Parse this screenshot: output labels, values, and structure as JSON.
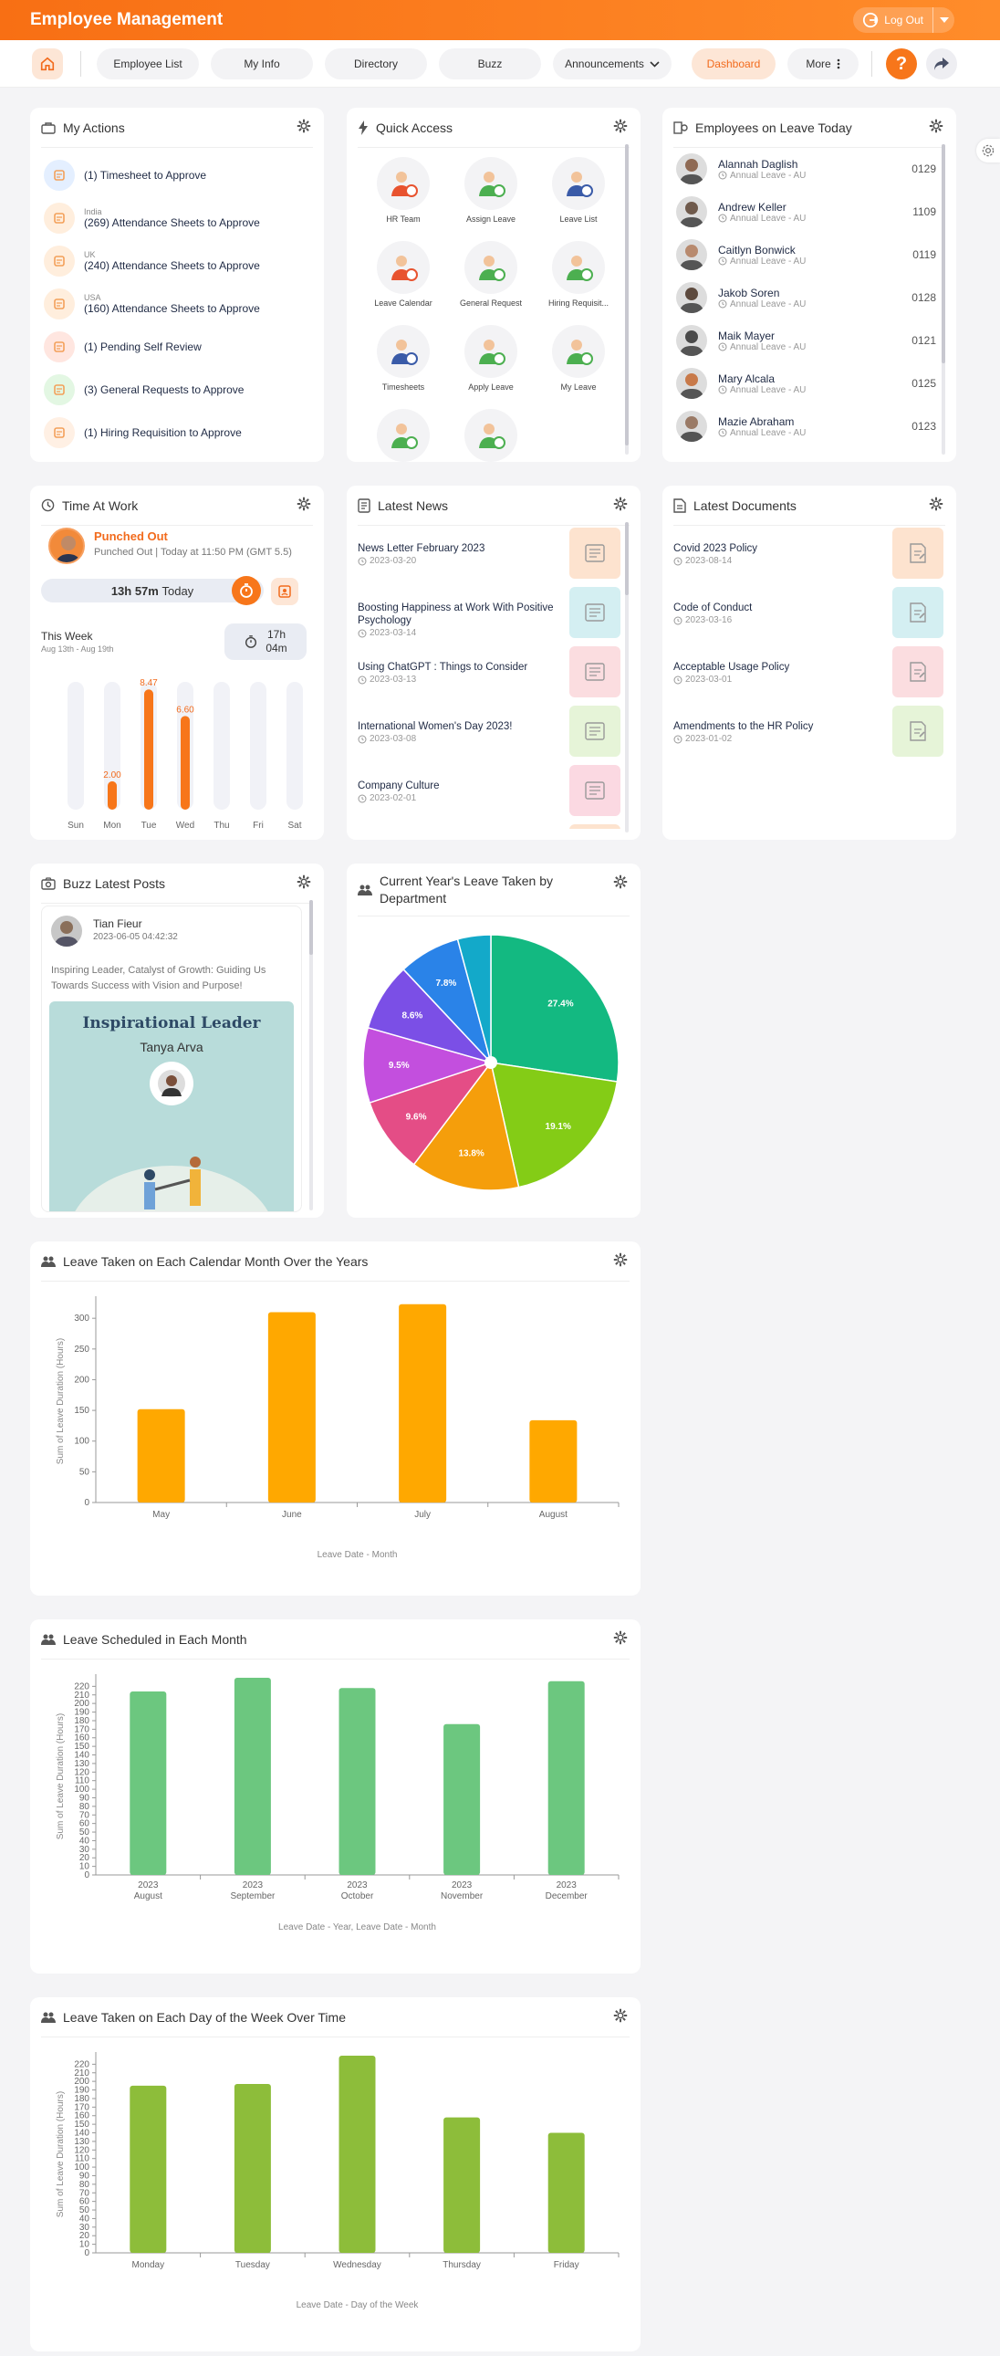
{
  "app": {
    "title": "Employee Management",
    "logout_label": "Log Out"
  },
  "nav": {
    "items": [
      {
        "label": "Employee List"
      },
      {
        "label": "My Info"
      },
      {
        "label": "Directory"
      },
      {
        "label": "Buzz"
      },
      {
        "label": "Announcements"
      },
      {
        "label": "Dashboard"
      },
      {
        "label": "More"
      }
    ],
    "help_label": "?"
  },
  "my_actions": {
    "title": "My Actions",
    "items": [
      {
        "sub": "",
        "text": "(1) Timesheet to Approve",
        "color": "#e4efff",
        "icon": "timesheet-icon"
      },
      {
        "sub": "India",
        "text": "(269) Attendance Sheets to Approve",
        "color": "#ffeedd",
        "icon": "attendance-icon"
      },
      {
        "sub": "UK",
        "text": "(240) Attendance Sheets to Approve",
        "color": "#ffeedd",
        "icon": "attendance-icon"
      },
      {
        "sub": "USA",
        "text": "(160) Attendance Sheets to Approve",
        "color": "#ffeedd",
        "icon": "attendance-icon"
      },
      {
        "sub": "",
        "text": "(1) Pending Self Review",
        "color": "#ffe6e0",
        "icon": "self-review-icon"
      },
      {
        "sub": "",
        "text": "(3) General Requests to Approve",
        "color": "#e3f7e3",
        "icon": "general-request-icon"
      },
      {
        "sub": "",
        "text": "(1) Hiring Requisition to Approve",
        "color": "#fff0e4",
        "icon": "hiring-icon"
      }
    ]
  },
  "quick_access": {
    "title": "Quick Access",
    "items": [
      {
        "label": "HR Team"
      },
      {
        "label": "Assign Leave"
      },
      {
        "label": "Leave List"
      },
      {
        "label": "Leave Calendar"
      },
      {
        "label": "General Request"
      },
      {
        "label": "Hiring Requisit..."
      },
      {
        "label": "Timesheets"
      },
      {
        "label": "Apply Leave"
      },
      {
        "label": "My Leave"
      },
      {
        "label": ""
      },
      {
        "label": ""
      }
    ]
  },
  "employees_on_leave": {
    "title": "Employees on Leave Today",
    "items": [
      {
        "name": "Alannah Daglish",
        "type": "Annual Leave - AU",
        "id": "0129"
      },
      {
        "name": "Andrew Keller",
        "type": "Annual Leave - AU",
        "id": "1109"
      },
      {
        "name": "Caitlyn Bonwick",
        "type": "Annual Leave - AU",
        "id": "0119"
      },
      {
        "name": "Jakob Soren",
        "type": "Annual Leave - AU",
        "id": "0128"
      },
      {
        "name": "Maik Mayer",
        "type": "Annual Leave - AU",
        "id": "0121"
      },
      {
        "name": "Mary Alcala",
        "type": "Annual Leave - AU",
        "id": "0125"
      },
      {
        "name": "Mazie Abraham",
        "type": "Annual Leave - AU",
        "id": "0123"
      }
    ]
  },
  "time_at_work": {
    "title": "Time At Work",
    "status": "Punched Out",
    "detail": "Punched Out | Today at 11:50 PM (GMT 5.5)",
    "today_hours": "13h 57m",
    "today_label": "Today",
    "week_label": "This Week",
    "week_range": "Aug 13th - Aug 19th",
    "week_total_h": "17h",
    "week_total_m": "04m",
    "chart_data": {
      "type": "bar",
      "categories": [
        "Sun",
        "Mon",
        "Tue",
        "Wed",
        "Thu",
        "Fri",
        "Sat"
      ],
      "values": [
        0,
        2.0,
        8.47,
        6.6,
        0,
        0,
        0
      ],
      "labels": [
        "",
        "2.00",
        "8.47",
        "6.60",
        "",
        "",
        ""
      ],
      "max": 9
    }
  },
  "latest_news": {
    "title": "Latest News",
    "items": [
      {
        "title": "News Letter February 2023",
        "date": "2023-03-20",
        "color": "#fde3cf"
      },
      {
        "title": "Boosting Happiness at Work With Positive Psychology",
        "date": "2023-03-14",
        "color": "#d4eff2"
      },
      {
        "title": "Using ChatGPT : Things to Consider",
        "date": "2023-03-13",
        "color": "#fbdde0"
      },
      {
        "title": "International Women's Day 2023!",
        "date": "2023-03-08",
        "color": "#e6f4d8"
      },
      {
        "title": "Company Culture",
        "date": "2023-02-01",
        "color": "#fbd9e2"
      }
    ]
  },
  "latest_documents": {
    "title": "Latest Documents",
    "items": [
      {
        "title": "Covid 2023 Policy",
        "date": "2023-08-14",
        "color": "#fde3cf"
      },
      {
        "title": "Code of Conduct",
        "date": "2023-03-16",
        "color": "#d4eff2"
      },
      {
        "title": "Acceptable Usage Policy",
        "date": "2023-03-01",
        "color": "#fbdde0"
      },
      {
        "title": "Amendments to the HR Policy",
        "date": "2023-01-02",
        "color": "#e6f4d8"
      }
    ]
  },
  "buzz": {
    "title": "Buzz Latest Posts",
    "author": "Tian Fieur",
    "timestamp": "2023-06-05 04:42:32",
    "text": "Inspiring Leader, Catalyst of Growth: Guiding Us Towards Success with Vision and Purpose!",
    "image_title": "Inspirational Leader",
    "image_name": "Tanya Arva"
  },
  "pie": {
    "title": "Current Year's Leave Taken by Department",
    "chart_data": {
      "type": "pie",
      "slices": [
        {
          "value": 27.4,
          "label": "27.4%",
          "color": "#13b981"
        },
        {
          "value": 19.1,
          "label": "19.1%",
          "color": "#84cc16"
        },
        {
          "value": 13.8,
          "label": "13.8%",
          "color": "#f59e0b"
        },
        {
          "value": 9.6,
          "label": "9.6%",
          "color": "#e44d86"
        },
        {
          "value": 9.5,
          "label": "9.5%",
          "color": "#c34fde"
        },
        {
          "value": 8.6,
          "label": "8.6%",
          "color": "#7b4fe6"
        },
        {
          "value": 7.8,
          "label": "7.8%",
          "color": "#2a83e8"
        },
        {
          "value": 4.2,
          "label": "",
          "color": "#13a9c9"
        }
      ]
    }
  },
  "chart_months": {
    "title": "Leave Taken on Each Calendar Month Over the Years",
    "chart_data": {
      "type": "bar",
      "categories": [
        "May",
        "June",
        "July",
        "August"
      ],
      "values": [
        152,
        310,
        323,
        134
      ],
      "ylabel": "Sum of Leave Duration (Hours)",
      "xlabel": "Leave Date - Month",
      "ylim": [
        0,
        330
      ],
      "yticks": [
        0,
        50,
        100,
        150,
        200,
        250,
        300
      ],
      "color": "#ffa800"
    }
  },
  "chart_scheduled": {
    "title": "Leave Scheduled in Each Month",
    "chart_data": {
      "type": "bar",
      "categories": [
        [
          "2023",
          "August"
        ],
        [
          "2023",
          "September"
        ],
        [
          "2023",
          "October"
        ],
        [
          "2023",
          "November"
        ],
        [
          "2023",
          "December"
        ]
      ],
      "values": [
        214,
        230,
        218,
        176,
        226
      ],
      "ylabel": "Sum of Leave Duration (Hours)",
      "xlabel": "Leave Date - Year, Leave Date - Month",
      "ylim": [
        0,
        230
      ],
      "yticks": [
        0,
        10,
        20,
        30,
        40,
        50,
        60,
        70,
        80,
        90,
        100,
        110,
        120,
        130,
        140,
        150,
        160,
        170,
        180,
        190,
        200,
        210,
        220
      ],
      "color": "#6cc77f"
    }
  },
  "chart_weekday": {
    "title": "Leave Taken on Each Day of the Week Over Time",
    "chart_data": {
      "type": "bar",
      "categories": [
        "Monday",
        "Tuesday",
        "Wednesday",
        "Thursday",
        "Friday"
      ],
      "values": [
        195,
        197,
        230,
        158,
        140
      ],
      "ylabel": "Sum of Leave Duration (Hours)",
      "xlabel": "Leave Date - Day of the Week",
      "ylim": [
        0,
        230
      ],
      "yticks": [
        0,
        10,
        20,
        30,
        40,
        50,
        60,
        70,
        80,
        90,
        100,
        110,
        120,
        130,
        140,
        150,
        160,
        170,
        180,
        190,
        200,
        210,
        220
      ],
      "color": "#8dbd3a"
    }
  }
}
